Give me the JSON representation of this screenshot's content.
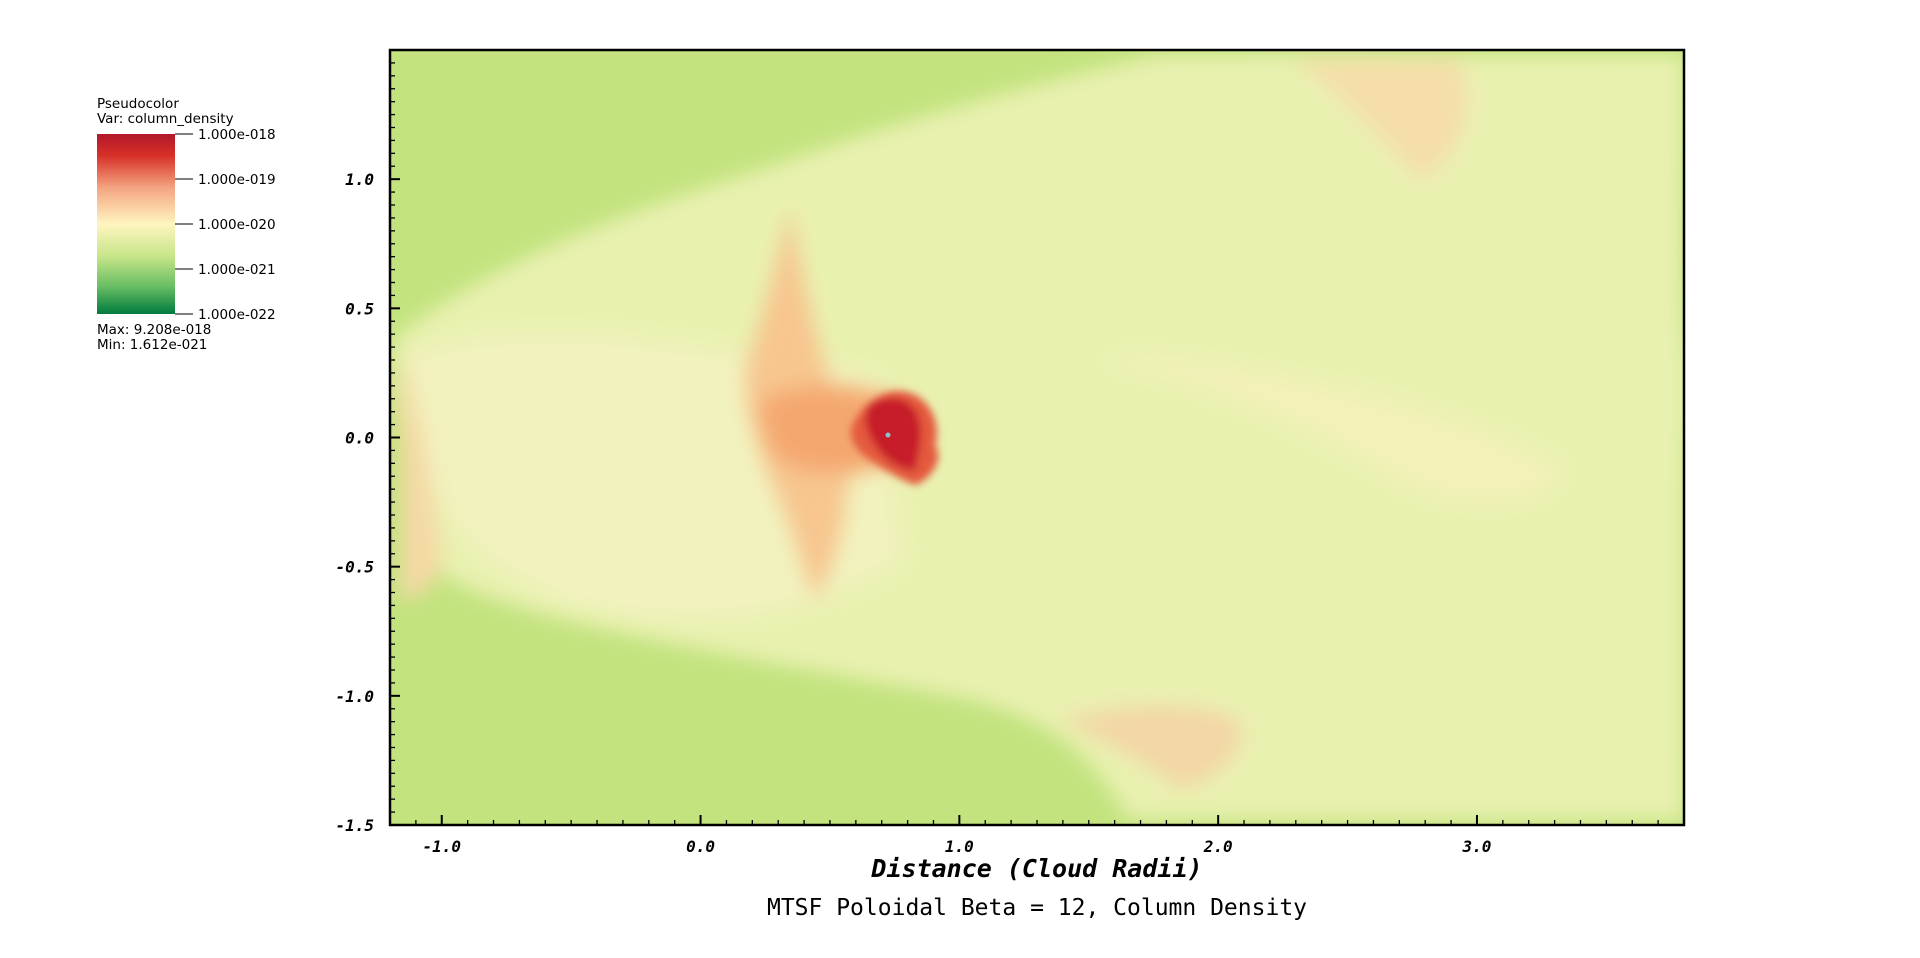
{
  "legend": {
    "title": "Pseudocolor",
    "variable": "Var: column_density",
    "ticks": [
      "1.000e-018",
      "1.000e-019",
      "1.000e-020",
      "1.000e-021",
      "1.000e-022"
    ],
    "max_label": "Max:  9.208e-018",
    "min_label": "Min:  1.612e-021",
    "colors": [
      "#b2182b",
      "#d73027",
      "#f4a582",
      "#fff5c0",
      "#c7e589",
      "#66bd63",
      "#007a3d"
    ]
  },
  "chart_data": {
    "type": "heatmap",
    "title": "MTSF Poloidal Beta = 12, Column Density",
    "xlabel": "Distance (Cloud Radii)",
    "ylabel": "",
    "xlim": [
      -1.2,
      3.8
    ],
    "ylim": [
      -1.5,
      1.5
    ],
    "x_ticks": [
      {
        "value": -1.0,
        "label": "-1.0"
      },
      {
        "value": 0.0,
        "label": "0.0"
      },
      {
        "value": 1.0,
        "label": "1.0"
      },
      {
        "value": 2.0,
        "label": "2.0"
      },
      {
        "value": 3.0,
        "label": "3.0"
      }
    ],
    "y_ticks": [
      {
        "value": 1.0,
        "label": "1.0"
      },
      {
        "value": 0.5,
        "label": "0.5"
      },
      {
        "value": 0.0,
        "label": "0.0"
      },
      {
        "value": -0.5,
        "label": "-0.5"
      },
      {
        "value": -1.0,
        "label": "-1.0"
      },
      {
        "value": -1.5,
        "label": "-1.5"
      }
    ],
    "colormap": "RdYlGn_r (log scale)",
    "background_color": "#c2e37e",
    "peak_location": {
      "x": 0.73,
      "y": 0.0
    },
    "grid": false
  }
}
